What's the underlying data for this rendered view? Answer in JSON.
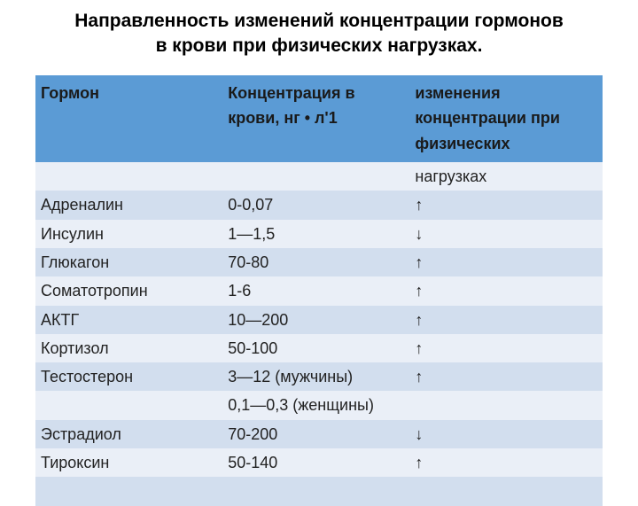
{
  "title_line1": "Направленность изменений концентрации гормонов",
  "title_line2": "в крови при физических нагрузках.",
  "headers": {
    "c1": "Гормон",
    "c2": "Концентрация в крови, нг • л'1",
    "c3": "изменения концентрации при физических"
  },
  "overflow_row": {
    "c1": "",
    "c2": "",
    "c3": "нагрузках"
  },
  "rows": [
    {
      "c1": "Адреналин",
      "c2": "0-0,07",
      "c3": "↑"
    },
    {
      "c1": "Инсулин",
      "c2": "1—1,5",
      "c3": "↓"
    },
    {
      "c1": "Глюкагон",
      "c2": "70-80",
      "c3": "↑"
    },
    {
      "c1": "Соматотропин",
      "c2": "1-6",
      "c3": "↑"
    },
    {
      "c1": "АКТГ",
      "c2": "10—200",
      "c3": "↑"
    },
    {
      "c1": "Кортизол",
      "c2": "50-100",
      "c3": "↑"
    },
    {
      "c1": "Тестостерон",
      "c2": "3—12 (мужчины)",
      "c3": "↑"
    },
    {
      "c1": "",
      "c2": "0,1—0,3 (женщины)",
      "c3": ""
    },
    {
      "c1": "Эстрадиол",
      "c2": "70-200",
      "c3": "↓"
    },
    {
      "c1": "Тироксин",
      "c2": "50-140",
      "c3": "↑"
    },
    {
      "c1": "",
      "c2": "",
      "c3": ""
    }
  ],
  "colors": {
    "header_bg": "#5b9bd5",
    "stripe_a": "#eaeff7",
    "stripe_b": "#d2deee"
  }
}
